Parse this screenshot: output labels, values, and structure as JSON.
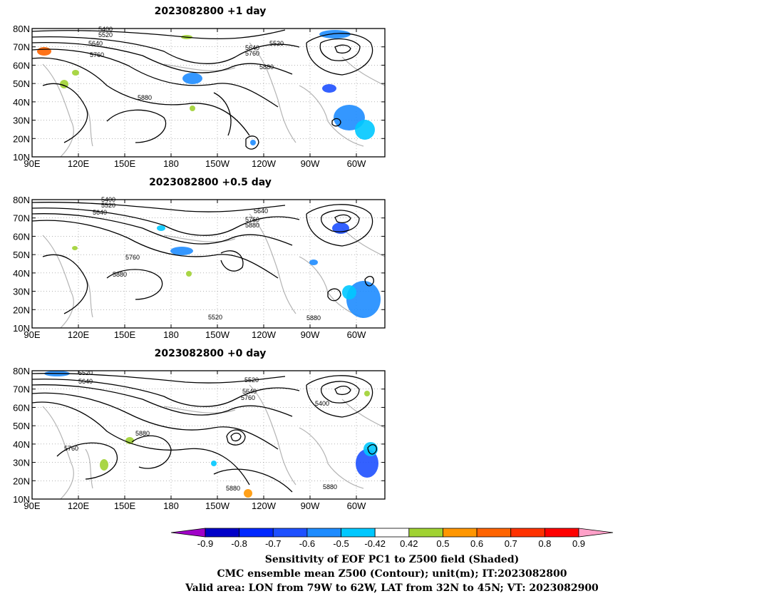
{
  "panels": [
    {
      "title": "2023082800  +1 day",
      "lat_labels": [
        "80N",
        "70N",
        "60N",
        "50N",
        "40N",
        "30N",
        "20N",
        "10N"
      ],
      "lon_labels": [
        "90E",
        "120E",
        "150E",
        "180",
        "150W",
        "120W",
        "90W",
        "60W"
      ],
      "contour_labels": [
        "5400",
        "5520",
        "5640",
        "5760",
        "5880",
        "5520",
        "5640",
        "5760",
        "5880"
      ]
    },
    {
      "title": "2023082800  +0.5 day",
      "lat_labels": [
        "80N",
        "70N",
        "60N",
        "50N",
        "40N",
        "30N",
        "20N",
        "10N"
      ],
      "lon_labels": [
        "90E",
        "120E",
        "150E",
        "180",
        "150W",
        "120W",
        "90W",
        "60W"
      ],
      "contour_labels": [
        "5400",
        "5520",
        "5640",
        "5760",
        "5880",
        "5520",
        "5640",
        "5760",
        "5880",
        "5880"
      ]
    },
    {
      "title": "2023082800  +0 day",
      "lat_labels": [
        "80N",
        "70N",
        "60N",
        "50N",
        "40N",
        "30N",
        "20N",
        "10N"
      ],
      "lon_labels": [
        "90E",
        "120E",
        "150E",
        "180",
        "150W",
        "120W",
        "90W",
        "60W"
      ],
      "contour_labels": [
        "5520",
        "5640",
        "5880",
        "5760",
        "5520",
        "5640",
        "5760",
        "5400",
        "5880",
        "5880"
      ]
    }
  ],
  "colorbar": {
    "labels": [
      "-0.9",
      "-0.8",
      "-0.7",
      "-0.6",
      "-0.5",
      "-0.42",
      "0.42",
      "0.5",
      "0.6",
      "0.7",
      "0.8",
      "0.9"
    ],
    "colors": [
      "#a000c8",
      "#0000c8",
      "#0028ff",
      "#1e50ff",
      "#1e8cff",
      "#00c8ff",
      "#ffffff",
      "#a0d232",
      "#ff9600",
      "#ff6400",
      "#ff3200",
      "#ff0000",
      "#ffa0c8"
    ]
  },
  "captions": [
    "Sensitivity of EOF PC1 to Z500 field (Shaded)",
    "CMC ensemble mean Z500 (Contour); unit(m); IT:2023082800",
    "Valid area: LON from 79W to 62W, LAT from 32N to 45N; VT: 2023082900"
  ]
}
